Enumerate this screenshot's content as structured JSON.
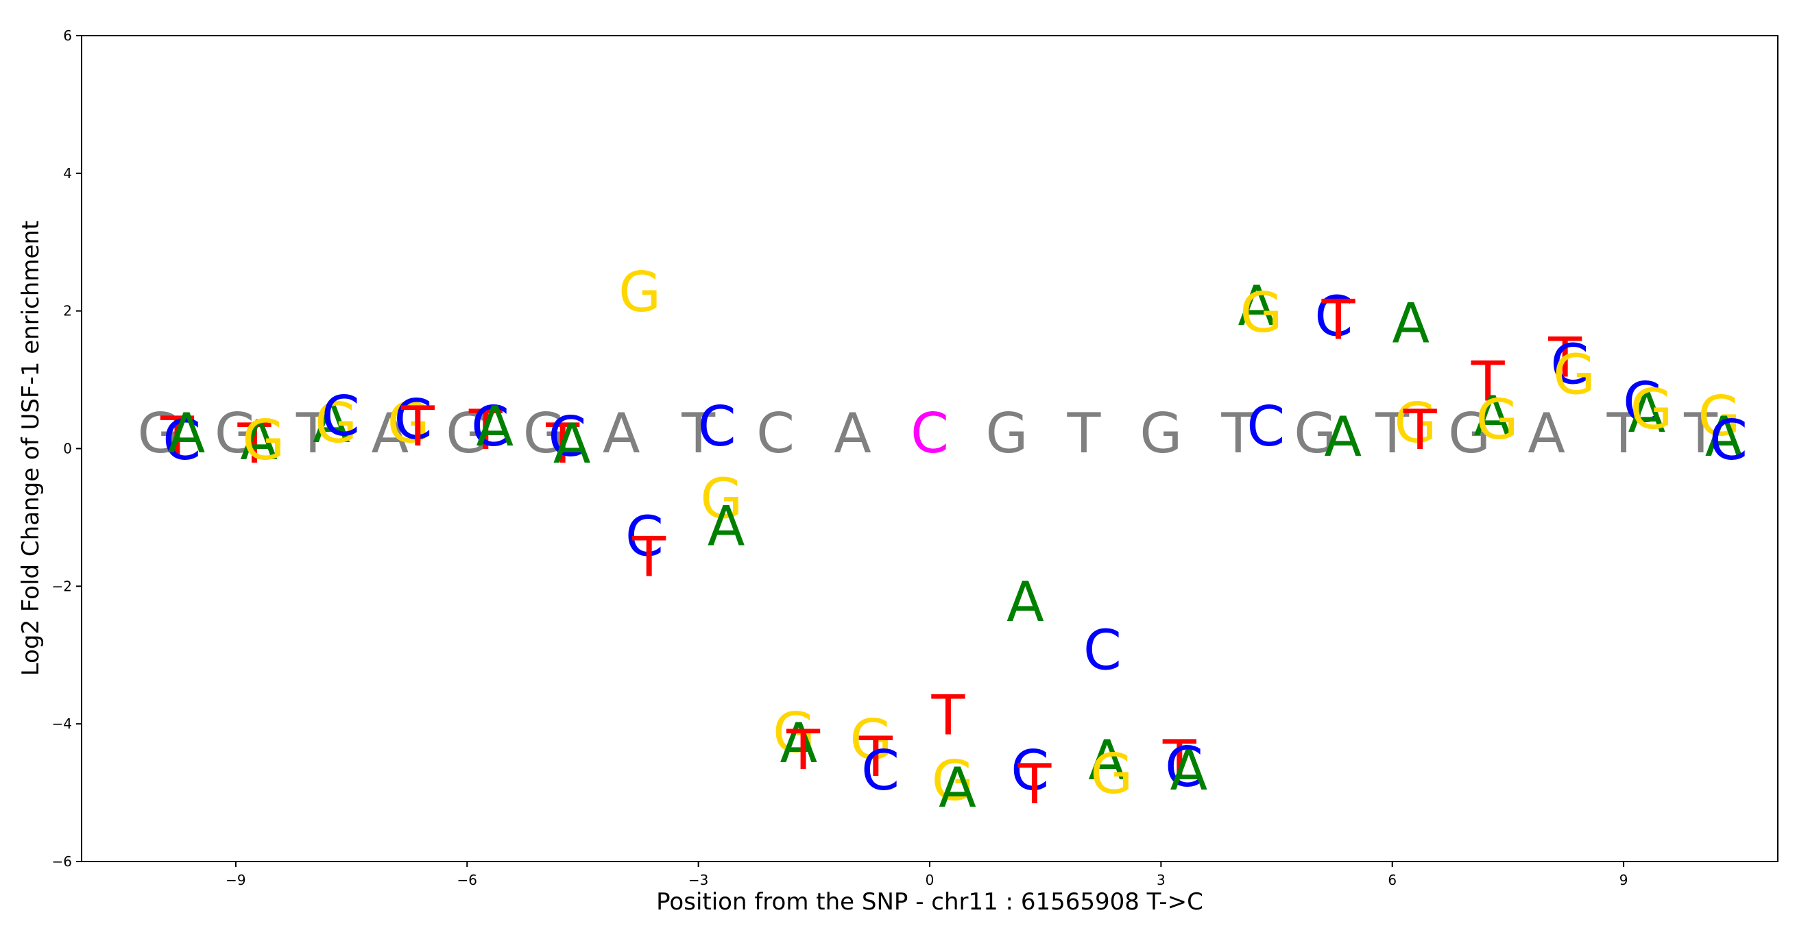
{
  "chart_data": {
    "type": "scatter",
    "title": "",
    "xlabel": "Position from the SNP - chr11 : 61565908 T->C",
    "ylabel": "Log2 Fold Change of USF-1 enrichment",
    "xlim": [
      -11,
      11
    ],
    "ylim": [
      -6,
      6
    ],
    "xticks": [
      -9,
      -6,
      -3,
      0,
      3,
      6,
      9
    ],
    "yticks": [
      -6,
      -4,
      -2,
      0,
      2,
      4,
      6
    ],
    "grid": false,
    "colors": {
      "A": "#008000",
      "C": "#0000ff",
      "G": "#ffd700",
      "T": "#ff0000",
      "ref": "#808080",
      "snp": "#ff00ff"
    },
    "reference_sequence": {
      "positions": [
        -10,
        -9,
        -8,
        -7,
        -6,
        -5,
        -4,
        -3,
        -2,
        -1,
        0,
        1,
        2,
        3,
        4,
        5,
        6,
        7,
        8,
        9,
        10
      ],
      "bases": [
        "G",
        "G",
        "T",
        "A",
        "G",
        "G",
        "A",
        "T",
        "C",
        "A",
        "C",
        "G",
        "T",
        "G",
        "T",
        "G",
        "T",
        "G",
        "A",
        "T",
        "T"
      ],
      "snp_position": 0
    },
    "mutations": [
      {
        "x": -10,
        "base": "T",
        "value": 0.05
      },
      {
        "x": -10,
        "base": "C",
        "value": 0.0
      },
      {
        "x": -10,
        "base": "A",
        "value": 0.1
      },
      {
        "x": -9,
        "base": "T",
        "value": -0.05
      },
      {
        "x": -9,
        "base": "A",
        "value": 0.0
      },
      {
        "x": -9,
        "base": "G",
        "value": 0.0
      },
      {
        "x": -8,
        "base": "A",
        "value": 0.25
      },
      {
        "x": -8,
        "base": "G",
        "value": 0.25
      },
      {
        "x": -8,
        "base": "C",
        "value": 0.35
      },
      {
        "x": -7,
        "base": "G",
        "value": 0.25
      },
      {
        "x": -7,
        "base": "C",
        "value": 0.3
      },
      {
        "x": -7,
        "base": "T",
        "value": 0.2
      },
      {
        "x": -6,
        "base": "T",
        "value": 0.15
      },
      {
        "x": -6,
        "base": "C",
        "value": 0.2
      },
      {
        "x": -6,
        "base": "A",
        "value": 0.2
      },
      {
        "x": -5,
        "base": "T",
        "value": -0.05
      },
      {
        "x": -5,
        "base": "C",
        "value": 0.05
      },
      {
        "x": -5,
        "base": "A",
        "value": -0.05
      },
      {
        "x": -4,
        "base": "G",
        "value": 2.15
      },
      {
        "x": -4,
        "base": "C",
        "value": -1.4
      },
      {
        "x": -4,
        "base": "T",
        "value": -1.7
      },
      {
        "x": -3,
        "base": "C",
        "value": 0.2
      },
      {
        "x": -3,
        "base": "G",
        "value": -0.85
      },
      {
        "x": -3,
        "base": "A",
        "value": -1.25
      },
      {
        "x": -2,
        "base": "G",
        "value": -4.25
      },
      {
        "x": -2,
        "base": "A",
        "value": -4.4
      },
      {
        "x": -2,
        "base": "T",
        "value": -4.5
      },
      {
        "x": -1,
        "base": "G",
        "value": -4.35
      },
      {
        "x": -1,
        "base": "T",
        "value": -4.6
      },
      {
        "x": -1,
        "base": "C",
        "value": -4.8
      },
      {
        "x": 0,
        "base": "T",
        "value": -4.0
      },
      {
        "x": 0,
        "base": "G",
        "value": -4.95
      },
      {
        "x": 0,
        "base": "A",
        "value": -5.05
      },
      {
        "x": 1,
        "base": "A",
        "value": -2.35
      },
      {
        "x": 1,
        "base": "C",
        "value": -4.8
      },
      {
        "x": 1,
        "base": "T",
        "value": -5.0
      },
      {
        "x": 2,
        "base": "C",
        "value": -3.05
      },
      {
        "x": 2,
        "base": "A",
        "value": -4.65
      },
      {
        "x": 2,
        "base": "G",
        "value": -4.85
      },
      {
        "x": 3,
        "base": "T",
        "value": -4.65
      },
      {
        "x": 3,
        "base": "C",
        "value": -4.75
      },
      {
        "x": 3,
        "base": "A",
        "value": -4.8
      },
      {
        "x": 4,
        "base": "A",
        "value": 1.95
      },
      {
        "x": 4,
        "base": "G",
        "value": 1.85
      },
      {
        "x": 4,
        "base": "C",
        "value": 0.2
      },
      {
        "x": 5,
        "base": "C",
        "value": 1.8
      },
      {
        "x": 5,
        "base": "T",
        "value": 1.75
      },
      {
        "x": 5,
        "base": "A",
        "value": 0.05
      },
      {
        "x": 6,
        "base": "A",
        "value": 1.7
      },
      {
        "x": 6,
        "base": "G",
        "value": 0.25
      },
      {
        "x": 6,
        "base": "T",
        "value": 0.15
      },
      {
        "x": 7,
        "base": "T",
        "value": 0.85
      },
      {
        "x": 7,
        "base": "A",
        "value": 0.35
      },
      {
        "x": 7,
        "base": "G",
        "value": 0.3
      },
      {
        "x": 8,
        "base": "T",
        "value": 1.2
      },
      {
        "x": 8,
        "base": "C",
        "value": 1.1
      },
      {
        "x": 8,
        "base": "G",
        "value": 0.95
      },
      {
        "x": 9,
        "base": "C",
        "value": 0.55
      },
      {
        "x": 9,
        "base": "A",
        "value": 0.4
      },
      {
        "x": 9,
        "base": "G",
        "value": 0.45
      },
      {
        "x": 10,
        "base": "G",
        "value": 0.35
      },
      {
        "x": 10,
        "base": "A",
        "value": 0.05
      },
      {
        "x": 10,
        "base": "C",
        "value": 0.0
      }
    ]
  }
}
